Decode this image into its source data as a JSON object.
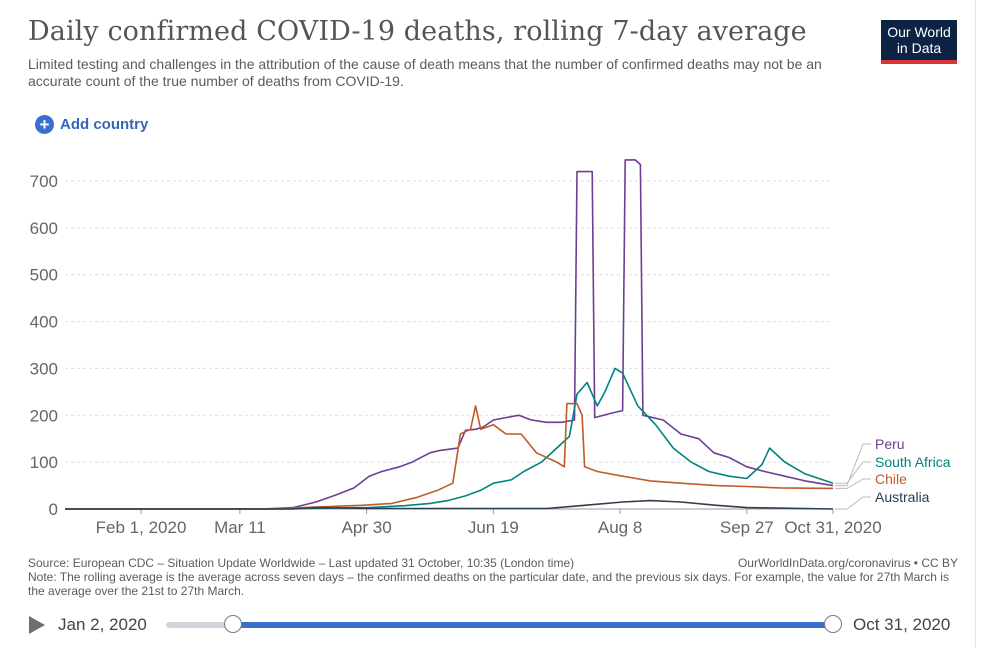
{
  "header": {
    "title": "Daily confirmed COVID-19 deaths, rolling 7-day average",
    "subtitle": "Limited testing and challenges in the attribution of the cause of death means that the number of confirmed deaths may not be an accurate count of the true number of deaths from COVID-19.",
    "logo_line1": "Our World",
    "logo_line2": "in Data",
    "add_country": "Add country",
    "add_icon": "plus-circle-icon"
  },
  "chart_data": {
    "type": "line",
    "x_ticks": [
      "Feb 1, 2020",
      "Mar 11",
      "Apr 30",
      "Jun 19",
      "Aug 8",
      "Sep 27",
      "Oct 31, 2020"
    ],
    "y_ticks": [
      "0",
      "100",
      "200",
      "300",
      "400",
      "500",
      "600",
      "700"
    ],
    "ylim": [
      0,
      760
    ],
    "xlim": [
      "2020-01-02",
      "2020-10-31"
    ],
    "grid": "horizontal dashed",
    "legend_placement": "right",
    "series": [
      {
        "name": "Peru",
        "color": "#6d3e91",
        "points": [
          [
            "2020-01-02",
            0
          ],
          [
            "2020-03-20",
            0
          ],
          [
            "2020-04-01",
            3
          ],
          [
            "2020-04-10",
            15
          ],
          [
            "2020-04-18",
            30
          ],
          [
            "2020-04-25",
            45
          ],
          [
            "2020-05-01",
            70
          ],
          [
            "2020-05-06",
            80
          ],
          [
            "2020-05-13",
            90
          ],
          [
            "2020-05-18",
            100
          ],
          [
            "2020-05-25",
            120
          ],
          [
            "2020-05-29",
            125
          ],
          [
            "2020-06-05",
            130
          ],
          [
            "2020-06-08",
            168
          ],
          [
            "2020-06-12",
            170
          ],
          [
            "2020-06-15",
            175
          ],
          [
            "2020-06-19",
            190
          ],
          [
            "2020-06-24",
            195
          ],
          [
            "2020-06-29",
            200
          ],
          [
            "2020-07-04",
            190
          ],
          [
            "2020-07-10",
            185
          ],
          [
            "2020-07-16",
            185
          ],
          [
            "2020-07-21",
            190
          ],
          [
            "2020-07-22",
            720
          ],
          [
            "2020-07-28",
            720
          ],
          [
            "2020-07-29",
            195
          ],
          [
            "2020-08-05",
            205
          ],
          [
            "2020-08-09",
            210
          ],
          [
            "2020-08-10",
            745
          ],
          [
            "2020-08-14",
            745
          ],
          [
            "2020-08-16",
            735
          ],
          [
            "2020-08-17",
            200
          ],
          [
            "2020-08-25",
            190
          ],
          [
            "2020-09-01",
            160
          ],
          [
            "2020-09-08",
            150
          ],
          [
            "2020-09-14",
            120
          ],
          [
            "2020-09-20",
            110
          ],
          [
            "2020-09-27",
            90
          ],
          [
            "2020-10-04",
            80
          ],
          [
            "2020-10-12",
            70
          ],
          [
            "2020-10-20",
            60
          ],
          [
            "2020-10-31",
            50
          ]
        ]
      },
      {
        "name": "South Africa",
        "color": "#00847e",
        "points": [
          [
            "2020-01-02",
            0
          ],
          [
            "2020-03-27",
            0
          ],
          [
            "2020-04-15",
            2
          ],
          [
            "2020-05-01",
            3
          ],
          [
            "2020-05-15",
            7
          ],
          [
            "2020-05-25",
            12
          ],
          [
            "2020-06-01",
            18
          ],
          [
            "2020-06-08",
            28
          ],
          [
            "2020-06-14",
            40
          ],
          [
            "2020-06-19",
            55
          ],
          [
            "2020-06-26",
            62
          ],
          [
            "2020-07-01",
            80
          ],
          [
            "2020-07-08",
            100
          ],
          [
            "2020-07-14",
            130
          ],
          [
            "2020-07-19",
            155
          ],
          [
            "2020-07-22",
            245
          ],
          [
            "2020-07-26",
            270
          ],
          [
            "2020-07-30",
            220
          ],
          [
            "2020-08-02",
            250
          ],
          [
            "2020-08-06",
            300
          ],
          [
            "2020-08-09",
            290
          ],
          [
            "2020-08-15",
            220
          ],
          [
            "2020-08-22",
            180
          ],
          [
            "2020-08-29",
            130
          ],
          [
            "2020-09-05",
            100
          ],
          [
            "2020-09-12",
            80
          ],
          [
            "2020-09-20",
            70
          ],
          [
            "2020-09-27",
            65
          ],
          [
            "2020-10-03",
            95
          ],
          [
            "2020-10-06",
            130
          ],
          [
            "2020-10-12",
            100
          ],
          [
            "2020-10-20",
            75
          ],
          [
            "2020-10-31",
            55
          ]
        ]
      },
      {
        "name": "Chile",
        "color": "#c15b28",
        "points": [
          [
            "2020-01-02",
            0
          ],
          [
            "2020-03-22",
            0
          ],
          [
            "2020-04-10",
            4
          ],
          [
            "2020-04-28",
            8
          ],
          [
            "2020-05-10",
            12
          ],
          [
            "2020-05-20",
            25
          ],
          [
            "2020-05-28",
            40
          ],
          [
            "2020-06-03",
            55
          ],
          [
            "2020-06-06",
            160
          ],
          [
            "2020-06-10",
            170
          ],
          [
            "2020-06-12",
            220
          ],
          [
            "2020-06-14",
            170
          ],
          [
            "2020-06-19",
            180
          ],
          [
            "2020-06-24",
            160
          ],
          [
            "2020-06-30",
            160
          ],
          [
            "2020-07-06",
            120
          ],
          [
            "2020-07-14",
            100
          ],
          [
            "2020-07-17",
            90
          ],
          [
            "2020-07-18",
            225
          ],
          [
            "2020-07-22",
            225
          ],
          [
            "2020-07-24",
            200
          ],
          [
            "2020-07-25",
            90
          ],
          [
            "2020-07-30",
            80
          ],
          [
            "2020-08-09",
            70
          ],
          [
            "2020-08-20",
            60
          ],
          [
            "2020-09-01",
            55
          ],
          [
            "2020-09-15",
            50
          ],
          [
            "2020-09-27",
            48
          ],
          [
            "2020-10-10",
            45
          ],
          [
            "2020-10-31",
            44
          ]
        ]
      },
      {
        "name": "Australia",
        "color": "#2d3e50",
        "points": [
          [
            "2020-01-02",
            0
          ],
          [
            "2020-04-01",
            0
          ],
          [
            "2020-04-10",
            3
          ],
          [
            "2020-05-01",
            1
          ],
          [
            "2020-07-10",
            1
          ],
          [
            "2020-07-25",
            8
          ],
          [
            "2020-08-09",
            15
          ],
          [
            "2020-08-20",
            18
          ],
          [
            "2020-09-01",
            15
          ],
          [
            "2020-09-15",
            8
          ],
          [
            "2020-09-27",
            3
          ],
          [
            "2020-10-31",
            0
          ]
        ]
      }
    ]
  },
  "footer": {
    "source": "Source: European CDC – Situation Update Worldwide – Last updated 31 October, 10:35 (London time)",
    "credit": "OurWorldInData.org/coronavirus • CC BY",
    "note": "Note: The rolling average is the average across seven days – the confirmed deaths on the particular date, and the previous six days. For example, the value for 27th March is the average over the 21st to 27th March."
  },
  "timeline": {
    "start_label": "Jan 2, 2020",
    "end_label": "Oct 31, 2020",
    "play_icon": "play-icon"
  }
}
